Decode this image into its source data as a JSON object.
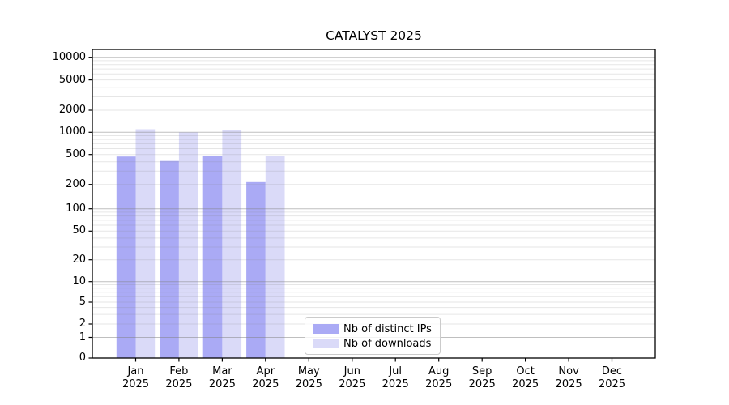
{
  "title": "CATALYST 2025",
  "legend": {
    "items": [
      {
        "label": "Nb of distinct IPs",
        "color": "#aaaaf5"
      },
      {
        "label": "Nb of downloads",
        "color": "#dadaf8"
      }
    ]
  },
  "y_axis": {
    "ticks": [
      {
        "value": 0,
        "label": "0"
      },
      {
        "value": 1,
        "label": "1"
      },
      {
        "value": 2,
        "label": "2"
      },
      {
        "value": 5,
        "label": "5"
      },
      {
        "value": 10,
        "label": "10"
      },
      {
        "value": 20,
        "label": "20"
      },
      {
        "value": 50,
        "label": "50"
      },
      {
        "value": 100,
        "label": "100"
      },
      {
        "value": 200,
        "label": "200"
      },
      {
        "value": 500,
        "label": "500"
      },
      {
        "value": 1000,
        "label": "1000"
      },
      {
        "value": 2000,
        "label": "2000"
      },
      {
        "value": 5000,
        "label": "5000"
      },
      {
        "value": 10000,
        "label": "10000"
      }
    ]
  },
  "x_axis": {
    "labels": [
      {
        "month": "Jan",
        "year": "2025"
      },
      {
        "month": "Feb",
        "year": "2025"
      },
      {
        "month": "Mar",
        "year": "2025"
      },
      {
        "month": "Apr",
        "year": "2025"
      },
      {
        "month": "May",
        "year": "2025"
      },
      {
        "month": "Jun",
        "year": "2025"
      },
      {
        "month": "Jul",
        "year": "2025"
      },
      {
        "month": "Aug",
        "year": "2025"
      },
      {
        "month": "Sep",
        "year": "2025"
      },
      {
        "month": "Oct",
        "year": "2025"
      },
      {
        "month": "Nov",
        "year": "2025"
      },
      {
        "month": "Dec",
        "year": "2025"
      }
    ]
  },
  "chart_data": {
    "type": "bar",
    "title": "CATALYST 2025",
    "y_scale": "symlog",
    "ylim": [
      0,
      10000
    ],
    "grid": "horizontal",
    "legend_position": "lower-center",
    "categories": [
      "Jan 2025",
      "Feb 2025",
      "Mar 2025",
      "Apr 2025",
      "May 2025",
      "Jun 2025",
      "Jul 2025",
      "Aug 2025",
      "Sep 2025",
      "Oct 2025",
      "Nov 2025",
      "Dec 2025"
    ],
    "series": [
      {
        "name": "Nb of distinct IPs",
        "color": "#aaaaf5",
        "values": [
          470,
          410,
          475,
          215,
          null,
          null,
          null,
          null,
          null,
          null,
          null,
          null
        ]
      },
      {
        "name": "Nb of downloads",
        "color": "#dadaf8",
        "values": [
          1100,
          1000,
          1070,
          480,
          null,
          null,
          null,
          null,
          null,
          null,
          null,
          null
        ]
      }
    ]
  }
}
